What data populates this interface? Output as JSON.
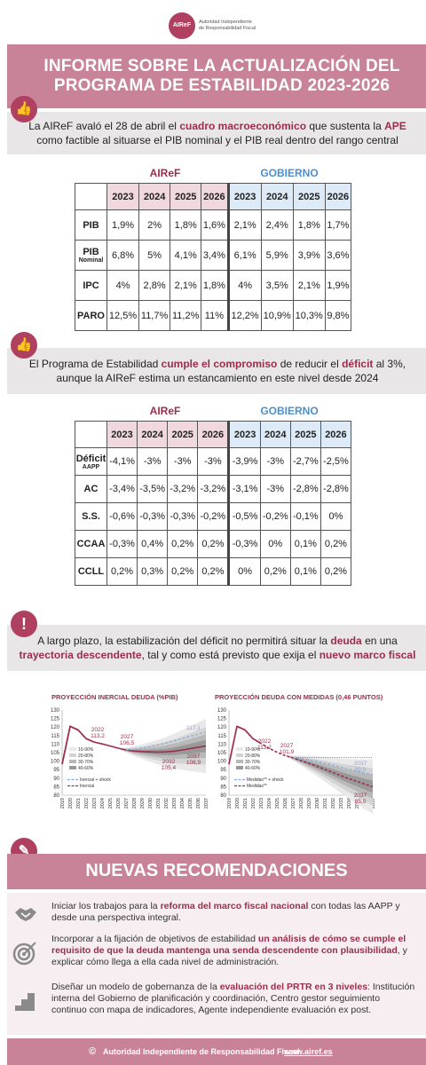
{
  "logo": {
    "mark": "AIReF",
    "line1": "Autoridad Independiente",
    "line2": "de Responsabilidad Fiscal"
  },
  "title": {
    "line1": "INFORME SOBRE LA ACTUALIZACIÓN DEL",
    "line2": "PROGRAMA DE ESTABILIDAD 2023-2026"
  },
  "section1": {
    "t1": "La AIReF avaló el 28 de abril el ",
    "h1": "cuadro macroeconómico",
    "t2": " que sustenta la ",
    "h2": "APE",
    "t3": " como factible al situarse el PIB nominal y el PIB real dentro del rango central"
  },
  "section2": {
    "t1": "El Programa de Estabilidad ",
    "h1": "cumple el compromiso",
    "t2": " de reducir el ",
    "h2": "déficit",
    "t3": " al 3%, aunque la AIReF estima un estancamiento en este nivel desde 2024"
  },
  "section3": {
    "t1": "A largo plazo, la estabilización del déficit no permitirá situar la ",
    "h1": "deuda",
    "t2": " en una ",
    "h2": "trayectoria descendente",
    "t3": ", tal y como está previsto que exija el ",
    "h3": "nuevo marco fiscal"
  },
  "groups": {
    "airef": "AIReF",
    "gobierno": "GOBIERNO"
  },
  "years": [
    "2023",
    "2024",
    "2025",
    "2026"
  ],
  "table1": {
    "rows": [
      {
        "label": "PIB",
        "sub": "",
        "airef": [
          "1,9%",
          "2%",
          "1,8%",
          "1,6%"
        ],
        "gob": [
          "2,1%",
          "2,4%",
          "1,8%",
          "1,7%"
        ]
      },
      {
        "label": "PIB",
        "sub": "Nominal",
        "airef": [
          "6,8%",
          "5%",
          "4,1%",
          "3,4%"
        ],
        "gob": [
          "6,1%",
          "5,9%",
          "3,9%",
          "3,6%"
        ]
      },
      {
        "label": "IPC",
        "sub": "",
        "airef": [
          "4%",
          "2,8%",
          "2,1%",
          "1,8%"
        ],
        "gob": [
          "4%",
          "3,5%",
          "2,1%",
          "1,9%"
        ]
      },
      {
        "label": "PARO",
        "sub": "",
        "airef": [
          "12,5%",
          "11,7%",
          "11,2%",
          "11%"
        ],
        "gob": [
          "12,2%",
          "10,9%",
          "10,3%",
          "9,8%"
        ]
      }
    ]
  },
  "table2": {
    "rows": [
      {
        "label": "Déficit",
        "sub": "AAPP",
        "airef": [
          "-4,1%",
          "-3%",
          "-3%",
          "-3%"
        ],
        "gob": [
          "-3,9%",
          "-3%",
          "-2,7%",
          "-2,5%"
        ]
      },
      {
        "label": "AC",
        "sub": "",
        "airef": [
          "-3,4%",
          "-3,5%",
          "-3,2%",
          "-3,2%"
        ],
        "gob": [
          "-3,1%",
          "-3%",
          "-2,8%",
          "-2,8%"
        ]
      },
      {
        "label": "S.S.",
        "sub": "",
        "airef": [
          "-0,6%",
          "-0,3%",
          "-0,3%",
          "-0,2%"
        ],
        "gob": [
          "-0,5%",
          "-0,2%",
          "-0,1%",
          "0%"
        ]
      },
      {
        "label": "CCAA",
        "sub": "",
        "airef": [
          "-0,3%",
          "0,4%",
          "0,2%",
          "0,2%"
        ],
        "gob": [
          "-0,3%",
          "0%",
          "0,1%",
          "0,2%"
        ]
      },
      {
        "label": "CCLL",
        "sub": "",
        "airef": [
          "0,2%",
          "0,3%",
          "0,2%",
          "0,2%"
        ],
        "gob": [
          "0%",
          "0,2%",
          "0,1%",
          "0,2%"
        ]
      }
    ]
  },
  "chart_data": [
    {
      "type": "line",
      "title": "PROYECCIÓN INERCIAL DEUDA (%PIB)",
      "x": [
        "2019",
        "2020",
        "2021",
        "2022",
        "2023",
        "2024",
        "2025",
        "2026",
        "2027",
        "2028",
        "2029",
        "2030",
        "2031",
        "2032",
        "2033",
        "2034",
        "2035",
        "2036",
        "2037"
      ],
      "ylim": [
        80,
        130
      ],
      "yticks": [
        "130",
        "125",
        "120",
        "115",
        "110",
        "105",
        "100",
        "95",
        "90",
        "85",
        "80"
      ],
      "fan_legend": [
        "10-90%",
        "20-80%",
        "30-70%",
        "40-60%"
      ],
      "series": [
        {
          "name": "Inercial",
          "values": [
            98.2,
            120.4,
            118.3,
            113.2,
            111.2,
            110.1,
            108.9,
            107.6,
            106.5,
            105.9,
            105.6,
            105.4,
            105.3,
            105.4,
            105.8,
            106.5,
            107.3,
            108.1,
            108.9
          ]
        },
        {
          "name": "Inercial + shock",
          "values": [
            null,
            null,
            null,
            null,
            null,
            null,
            null,
            null,
            106.5,
            106.8,
            107.6,
            108.5,
            109.5,
            110.6,
            111.8,
            113.1,
            114.5,
            115.8,
            117.1
          ]
        }
      ],
      "annotations": [
        {
          "year": "2022",
          "value": "113,2"
        },
        {
          "year": "2027",
          "value": "106,5"
        },
        {
          "year": "2032",
          "value": "105,4"
        },
        {
          "year": "2037",
          "value": "108,9"
        },
        {
          "year": "",
          "value": "117,1"
        }
      ]
    },
    {
      "type": "line",
      "title": "PROYECCIÓN DEUDA CON MEDIDAS (0,46 PUNTOS)",
      "x": [
        "2019",
        "2020",
        "2021",
        "2022",
        "2023",
        "2024",
        "2025",
        "2026",
        "2027",
        "2028",
        "2029",
        "2030",
        "2031",
        "2032",
        "2033",
        "2034",
        "2035",
        "2036",
        "2037"
      ],
      "ylim": [
        80,
        130
      ],
      "yticks": [
        "130",
        "125",
        "120",
        "115",
        "110",
        "105",
        "100",
        "95",
        "90",
        "85",
        "80"
      ],
      "fan_legend": [
        "10-90%",
        "20-80%",
        "30-70%",
        "40-60%"
      ],
      "series": [
        {
          "name": "Medidas**",
          "values": [
            98.2,
            120.4,
            118.3,
            113.2,
            110.4,
            107.6,
            105.2,
            103.3,
            101.9,
            100.3,
            98.7,
            97.0,
            95.2,
            93.3,
            91.5,
            89.7,
            88.1,
            86.5,
            85.0
          ]
        },
        {
          "name": "Medidas** + shock",
          "values": [
            null,
            null,
            null,
            null,
            null,
            null,
            null,
            null,
            101.9,
            101.5,
            100.8,
            99.9,
            98.8,
            97.6,
            96.4,
            95.2,
            94.1,
            93.0,
            92.0
          ]
        }
      ],
      "annotations": [
        {
          "year": "2022",
          "value": "113,2"
        },
        {
          "year": "2027",
          "value": "101,9"
        },
        {
          "year": "2037",
          "value": "92,0"
        },
        {
          "year": "2037",
          "value": "85,0"
        }
      ]
    }
  ],
  "recommendations": {
    "title": "NUEVAS RECOMENDACIONES",
    "items": [
      {
        "t1": "Iniciar los trabajos para la ",
        "h1": "reforma del marco fiscal nacional",
        "t2": " con todas las AAPP y desde una perspectiva integral.",
        "h2": "",
        "t3": ""
      },
      {
        "t1": "Incorporar a la fijación de objetivos de estabilidad ",
        "h1": "un análisis de cómo se cumple el requisito de que la deuda mantenga una senda descendente con plausibilidad",
        "t2": ", y explicar cómo llega a ella cada nivel de administración.",
        "h2": "",
        "t3": ""
      },
      {
        "t1": "Diseñar un modelo de gobernanza de la ",
        "h1": "evaluación del PRTR en 3 niveles",
        "t2": ": Institución interna del Gobierno de planificación y coordinación, Centro gestor seguimiento continuo con mapa de indicadores, Agente independiente evaluación ex post.",
        "h2": "",
        "t3": ""
      }
    ]
  },
  "footer": {
    "org": "Autoridad Independiente de Responsabilidad Fiscal",
    "web": "www.airef.es",
    "copyright": "©"
  },
  "colors": {
    "accent": "#9c2d4b",
    "band": "#c98398",
    "gobierno": "#4b90cc"
  }
}
